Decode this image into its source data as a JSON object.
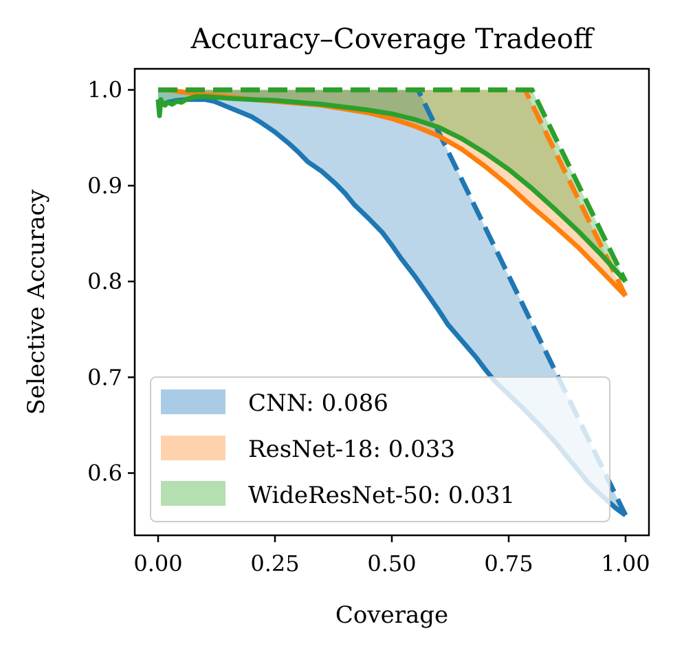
{
  "chart_data": {
    "type": "line",
    "title": "Accuracy–Coverage Tradeoff",
    "xlabel": "Coverage",
    "ylabel": "Selective Accuracy",
    "xlim": [
      -0.05,
      1.05
    ],
    "ylim": [
      0.535,
      1.022
    ],
    "xticks": [
      0.0,
      0.25,
      0.5,
      0.75,
      1.0
    ],
    "xtick_labels": [
      "0.00",
      "0.25",
      "0.50",
      "0.75",
      "1.00"
    ],
    "yticks": [
      0.6,
      0.7,
      0.8,
      0.9,
      1.0
    ],
    "ytick_labels": [
      "0.6",
      "0.7",
      "0.8",
      "0.9",
      "1.0"
    ],
    "grid": false,
    "legend_position": "lower-left",
    "series": [
      {
        "name": "CNN",
        "legend_label": "CNN: 0.086",
        "color": "#1f77b4",
        "fill_color": "#a9cbe5",
        "full_coverage_accuracy": 0.556,
        "oracle": {
          "x": [
            0.0,
            0.556,
            1.0
          ],
          "y": [
            1.0,
            1.0,
            0.556
          ]
        },
        "curve": {
          "x": [
            0.0,
            0.01,
            0.02,
            0.04,
            0.06,
            0.08,
            0.1,
            0.12,
            0.15,
            0.18,
            0.2,
            0.22,
            0.25,
            0.28,
            0.3,
            0.32,
            0.35,
            0.38,
            0.4,
            0.42,
            0.45,
            0.48,
            0.5,
            0.52,
            0.55,
            0.58,
            0.6,
            0.62,
            0.65,
            0.68,
            0.7,
            0.72,
            0.75,
            0.78,
            0.8,
            0.82,
            0.85,
            0.88,
            0.9,
            0.92,
            0.95,
            0.98,
            1.0
          ],
          "y": [
            0.99,
            0.985,
            0.987,
            0.989,
            0.99,
            0.99,
            0.99,
            0.988,
            0.982,
            0.976,
            0.972,
            0.966,
            0.956,
            0.944,
            0.935,
            0.925,
            0.915,
            0.902,
            0.892,
            0.88,
            0.866,
            0.851,
            0.838,
            0.824,
            0.805,
            0.784,
            0.77,
            0.755,
            0.738,
            0.721,
            0.708,
            0.696,
            0.682,
            0.668,
            0.658,
            0.648,
            0.632,
            0.614,
            0.602,
            0.59,
            0.576,
            0.563,
            0.556
          ]
        }
      },
      {
        "name": "ResNet-18",
        "legend_label": "ResNet-18: 0.033",
        "color": "#ff7f0e",
        "fill_color": "#ffd2ae",
        "full_coverage_accuracy": 0.785,
        "oracle": {
          "x": [
            0.0,
            0.785,
            1.0
          ],
          "y": [
            1.0,
            1.0,
            0.785
          ]
        },
        "curve": {
          "x": [
            0.0,
            0.02,
            0.05,
            0.1,
            0.15,
            0.2,
            0.25,
            0.3,
            0.35,
            0.4,
            0.45,
            0.5,
            0.55,
            0.6,
            0.65,
            0.7,
            0.75,
            0.8,
            0.85,
            0.9,
            0.95,
            1.0
          ],
          "y": [
            1.0,
            1.0,
            0.998,
            0.995,
            0.993,
            0.99,
            0.988,
            0.986,
            0.984,
            0.98,
            0.976,
            0.97,
            0.962,
            0.952,
            0.938,
            0.92,
            0.9,
            0.878,
            0.857,
            0.835,
            0.81,
            0.785
          ]
        }
      },
      {
        "name": "WideResNet-50",
        "legend_label": "WideResNet-50: 0.031",
        "color": "#2ca02c",
        "fill_color": "#b5dfb0",
        "full_coverage_accuracy": 0.8,
        "oracle": {
          "x": [
            0.0,
            0.8,
            1.0
          ],
          "y": [
            1.0,
            1.0,
            0.8
          ]
        },
        "curve": {
          "x": [
            0.0,
            0.003,
            0.006,
            0.01,
            0.015,
            0.02,
            0.03,
            0.04,
            0.05,
            0.06,
            0.08,
            0.1,
            0.13,
            0.16,
            0.2,
            0.25,
            0.3,
            0.35,
            0.4,
            0.45,
            0.5,
            0.55,
            0.6,
            0.65,
            0.7,
            0.75,
            0.8,
            0.85,
            0.9,
            0.95,
            1.0
          ],
          "y": [
            0.99,
            0.973,
            0.99,
            0.985,
            0.984,
            0.987,
            0.985,
            0.988,
            0.987,
            0.99,
            0.993,
            0.993,
            0.992,
            0.991,
            0.99,
            0.989,
            0.987,
            0.985,
            0.982,
            0.979,
            0.975,
            0.969,
            0.961,
            0.949,
            0.934,
            0.917,
            0.897,
            0.875,
            0.852,
            0.827,
            0.8
          ]
        }
      }
    ]
  }
}
